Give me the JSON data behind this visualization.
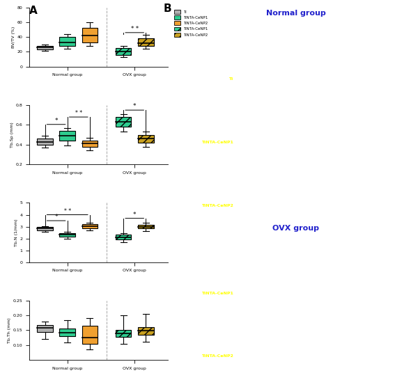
{
  "legend_labels": [
    "Ti",
    "TiNTA-CeNP1",
    "TiNTA-CeNP2",
    "TiNTA-CeNP1",
    "TiNTA-CeNP2"
  ],
  "legend_colors": [
    "#b0b0b0",
    "#2ecc8f",
    "#f0a030",
    "#2ecc8f",
    "#c8a020"
  ],
  "legend_hatches": [
    "",
    "",
    "",
    "///",
    "///"
  ],
  "panel_A_label": "A",
  "panel_B_label": "B",
  "plot1_ylabel": "BV/TV (%)",
  "plot1_ylim": [
    0,
    80
  ],
  "plot1_yticks": [
    0,
    20,
    40,
    60,
    80
  ],
  "plot1_data": {
    "Normal_Ti": {
      "q1": 23,
      "med": 26,
      "q3": 28,
      "min": 21,
      "max": 30
    },
    "Normal_CeNP1": {
      "q1": 28,
      "med": 33,
      "q3": 40,
      "min": 24,
      "max": 44
    },
    "Normal_CeNP2": {
      "q1": 33,
      "med": 42,
      "q3": 52,
      "min": 28,
      "max": 60
    },
    "OVX_CeNP1": {
      "q1": 16,
      "med": 20,
      "q3": 25,
      "min": 13,
      "max": 28
    },
    "OVX_CeNP2": {
      "q1": 28,
      "med": 32,
      "q3": 38,
      "min": 24,
      "max": 43
    }
  },
  "plot2_ylabel": "Tb.Sp (mm)",
  "plot2_ylim": [
    0.2,
    0.8
  ],
  "plot2_yticks": [
    0.2,
    0.4,
    0.6,
    0.8
  ],
  "plot2_data": {
    "Normal_Ti": {
      "q1": 0.4,
      "med": 0.43,
      "q3": 0.46,
      "min": 0.37,
      "max": 0.49
    },
    "Normal_CeNP1": {
      "q1": 0.44,
      "med": 0.49,
      "q3": 0.54,
      "min": 0.39,
      "max": 0.57
    },
    "Normal_CeNP2": {
      "q1": 0.38,
      "med": 0.41,
      "q3": 0.44,
      "min": 0.34,
      "max": 0.47
    },
    "OVX_CeNP1": {
      "q1": 0.58,
      "med": 0.63,
      "q3": 0.68,
      "min": 0.53,
      "max": 0.71
    },
    "OVX_CeNP2": {
      "q1": 0.42,
      "med": 0.46,
      "q3": 0.5,
      "min": 0.38,
      "max": 0.53
    }
  },
  "plot3_ylabel": "Tb.N (1/mm)",
  "plot3_ylim": [
    0,
    5
  ],
  "plot3_yticks": [
    0,
    1,
    2,
    3,
    4,
    5
  ],
  "plot3_data": {
    "Normal_Ti": {
      "q1": 2.7,
      "med": 2.85,
      "q3": 3.0,
      "min": 2.55,
      "max": 3.05
    },
    "Normal_CeNP1": {
      "q1": 2.15,
      "med": 2.3,
      "q3": 2.45,
      "min": 1.95,
      "max": 2.55
    },
    "Normal_CeNP2": {
      "q1": 2.85,
      "med": 3.05,
      "q3": 3.2,
      "min": 2.65,
      "max": 3.3
    },
    "OVX_CeNP1": {
      "q1": 1.9,
      "med": 2.1,
      "q3": 2.3,
      "min": 1.7,
      "max": 2.45
    },
    "OVX_CeNP2": {
      "q1": 2.85,
      "med": 3.0,
      "q3": 3.15,
      "min": 2.6,
      "max": 3.3
    }
  },
  "plot4_ylabel": "Tb.Th (mm)",
  "plot4_ylim": [
    0.05,
    0.25
  ],
  "plot4_yticks": [
    0.1,
    0.15,
    0.2,
    0.25
  ],
  "plot4_data": {
    "Normal_Ti": {
      "q1": 0.145,
      "med": 0.158,
      "q3": 0.168,
      "min": 0.12,
      "max": 0.18
    },
    "Normal_CeNP1": {
      "q1": 0.13,
      "med": 0.142,
      "q3": 0.155,
      "min": 0.108,
      "max": 0.185
    },
    "Normal_CeNP2": {
      "q1": 0.105,
      "med": 0.125,
      "q3": 0.165,
      "min": 0.085,
      "max": 0.19
    },
    "OVX_CeNP1": {
      "q1": 0.128,
      "med": 0.14,
      "q3": 0.152,
      "min": 0.105,
      "max": 0.2
    },
    "OVX_CeNP2": {
      "q1": 0.135,
      "med": 0.148,
      "q3": 0.16,
      "min": 0.11,
      "max": 0.205
    }
  },
  "group_labels": [
    "Normal group",
    "OVX group"
  ],
  "box_colors": [
    "#b0b0b0",
    "#2ecc8f",
    "#f0a030",
    "#2ecc8f",
    "#c8a020"
  ],
  "box_hatches": [
    "",
    "",
    "",
    "///",
    "///"
  ],
  "normal_group_title": "Normal group",
  "ovx_group_title": "OVX group",
  "normal_labels": [
    "Ti",
    "TiNTA-CeNP1",
    "TiNTA-CeNP2"
  ],
  "ovx_labels": [
    "TiNTA-CeNP1",
    "TiNTA-CeNP2"
  ],
  "bg_color": "#000000",
  "text_color_yellow": "#ffff00",
  "title_color_blue": "#2222cc"
}
